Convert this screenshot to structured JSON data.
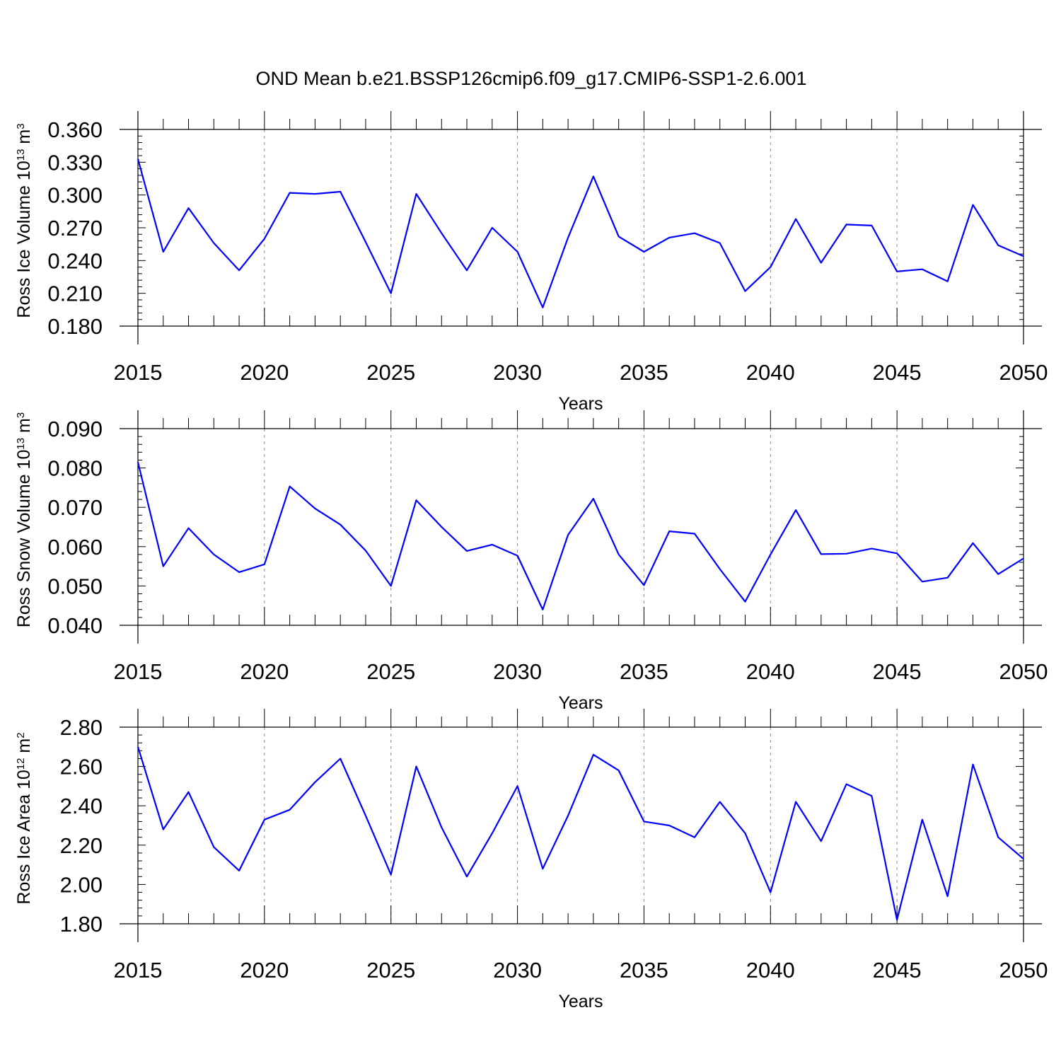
{
  "figure": {
    "title": "OND Mean b.e21.BSSP126cmip6.f09_g17.CMIP6-SSP1-2.6.001"
  },
  "colors": {
    "line": "#0000ff",
    "grid": "#888888",
    "axis": "#000000"
  },
  "chart_data": [
    {
      "type": "line",
      "ylabel": {
        "main": "Ross Ice Volume 10",
        "exp": "13",
        "unit": " m",
        "unit_exp": "3"
      },
      "xlabel": "Years",
      "xlim": [
        2015,
        2050
      ],
      "ylim": [
        0.18,
        0.36
      ],
      "yticks": [
        "0.180",
        "0.210",
        "0.240",
        "0.270",
        "0.300",
        "0.330",
        "0.360"
      ],
      "xticks": [
        "2015",
        "2020",
        "2025",
        "2030",
        "2035",
        "2040",
        "2045",
        "2050"
      ],
      "grid": "vertical-dashed-at-major-x",
      "x": [
        2015,
        2016,
        2017,
        2018,
        2019,
        2020,
        2021,
        2022,
        2023,
        2024,
        2025,
        2026,
        2027,
        2028,
        2029,
        2030,
        2031,
        2032,
        2033,
        2034,
        2035,
        2036,
        2037,
        2038,
        2039,
        2040,
        2041,
        2042,
        2043,
        2044,
        2045,
        2046,
        2047,
        2048,
        2049,
        2050
      ],
      "values": [
        0.333,
        0.248,
        0.288,
        0.256,
        0.231,
        0.26,
        0.302,
        0.301,
        0.303,
        0.257,
        0.21,
        0.301,
        0.265,
        0.231,
        0.27,
        0.248,
        0.197,
        0.261,
        0.317,
        0.262,
        0.248,
        0.261,
        0.265,
        0.256,
        0.212,
        0.234,
        0.278,
        0.238,
        0.273,
        0.272,
        0.23,
        0.232,
        0.221,
        0.291,
        0.254,
        0.244
      ]
    },
    {
      "type": "line",
      "ylabel": {
        "main": "Ross Snow Volume 10",
        "exp": "13",
        "unit": " m",
        "unit_exp": "3"
      },
      "xlabel": "Years",
      "xlim": [
        2015,
        2050
      ],
      "ylim": [
        0.04,
        0.09
      ],
      "yticks": [
        "0.040",
        "0.050",
        "0.060",
        "0.070",
        "0.080",
        "0.090"
      ],
      "xticks": [
        "2015",
        "2020",
        "2025",
        "2030",
        "2035",
        "2040",
        "2045",
        "2050"
      ],
      "grid": "vertical-dashed-at-major-x",
      "x": [
        2015,
        2016,
        2017,
        2018,
        2019,
        2020,
        2021,
        2022,
        2023,
        2024,
        2025,
        2026,
        2027,
        2028,
        2029,
        2030,
        2031,
        2032,
        2033,
        2034,
        2035,
        2036,
        2037,
        2038,
        2039,
        2040,
        2041,
        2042,
        2043,
        2044,
        2045,
        2046,
        2047,
        2048,
        2049,
        2050
      ],
      "values": [
        0.0815,
        0.055,
        0.0647,
        0.058,
        0.0535,
        0.0555,
        0.0753,
        0.0697,
        0.0656,
        0.059,
        0.05,
        0.0718,
        0.065,
        0.0589,
        0.0605,
        0.0577,
        0.044,
        0.063,
        0.0722,
        0.058,
        0.0502,
        0.0639,
        0.0633,
        0.0543,
        0.046,
        0.058,
        0.0693,
        0.0581,
        0.0582,
        0.0595,
        0.0583,
        0.0511,
        0.0521,
        0.0609,
        0.053,
        0.057
      ]
    },
    {
      "type": "line",
      "ylabel": {
        "main": "Ross Ice Area 10",
        "exp": "12",
        "unit": " m",
        "unit_exp": "2"
      },
      "xlabel": "Years",
      "xlim": [
        2015,
        2050
      ],
      "ylim": [
        1.8,
        2.8
      ],
      "yticks": [
        "1.80",
        "2.00",
        "2.20",
        "2.40",
        "2.60",
        "2.80"
      ],
      "xticks": [
        "2015",
        "2020",
        "2025",
        "2030",
        "2035",
        "2040",
        "2045",
        "2050"
      ],
      "grid": "vertical-dashed-at-major-x",
      "x": [
        2015,
        2016,
        2017,
        2018,
        2019,
        2020,
        2021,
        2022,
        2023,
        2024,
        2025,
        2026,
        2027,
        2028,
        2029,
        2030,
        2031,
        2032,
        2033,
        2034,
        2035,
        2036,
        2037,
        2038,
        2039,
        2040,
        2041,
        2042,
        2043,
        2044,
        2045,
        2046,
        2047,
        2048,
        2049,
        2050
      ],
      "values": [
        2.7,
        2.28,
        2.47,
        2.19,
        2.07,
        2.33,
        2.38,
        2.52,
        2.64,
        2.35,
        2.05,
        2.6,
        2.29,
        2.04,
        2.26,
        2.5,
        2.08,
        2.35,
        2.66,
        2.58,
        2.32,
        2.3,
        2.24,
        2.42,
        2.26,
        1.96,
        2.42,
        2.22,
        2.51,
        2.45,
        1.82,
        2.33,
        1.94,
        2.61,
        2.24,
        2.13
      ]
    }
  ]
}
